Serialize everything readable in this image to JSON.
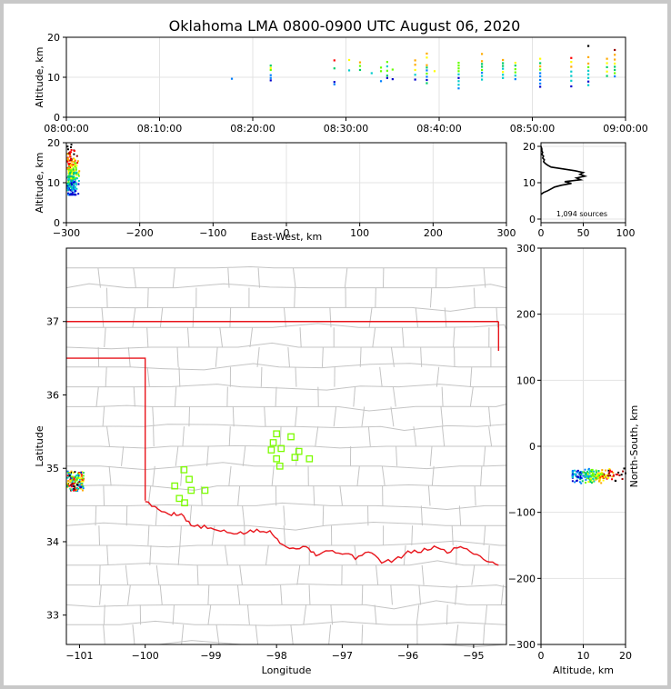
{
  "title": "Oklahoma LMA 0800-0900 UTC August 06, 2020",
  "source_count_text": "1,094 sources",
  "chart_data": [
    {
      "panel": "time-altitude",
      "type": "scatter",
      "ylabel": "Altitude, km",
      "xlim": [
        "08:00:00",
        "09:00:00"
      ],
      "ylim": [
        0,
        20
      ],
      "xticks": [
        "08:00:00",
        "08:10:00",
        "08:20:00",
        "08:30:00",
        "08:40:00",
        "08:50:00",
        "09:00:00"
      ],
      "yticks": [
        "0",
        "10",
        "20"
      ],
      "grid": true,
      "columns": [
        {
          "t": "08:17:45",
          "alts": [
            9.6
          ]
        },
        {
          "t": "08:21:55",
          "alts": [
            9.2,
            9.8,
            10.5,
            11.8,
            12.3,
            12.9
          ]
        },
        {
          "t": "08:28:45",
          "alts": [
            8.2,
            8.8,
            12.2,
            14.2
          ]
        },
        {
          "t": "08:30:20",
          "alts": [
            11.7,
            14.3
          ]
        },
        {
          "t": "08:31:30",
          "alts": [
            11.8,
            12.8,
            13.7
          ]
        },
        {
          "t": "08:32:45",
          "alts": [
            11.0
          ]
        },
        {
          "t": "08:33:45",
          "alts": [
            9.0,
            11.5,
            12.4
          ]
        },
        {
          "t": "08:34:25",
          "alts": [
            9.8,
            10.4,
            11.6,
            12.7,
            13.8
          ]
        },
        {
          "t": "08:35:00",
          "alts": [
            9.5,
            11.9
          ]
        },
        {
          "t": "08:37:25",
          "alts": [
            9.4,
            10.6,
            11.8,
            13.1,
            14.2
          ]
        },
        {
          "t": "08:38:40",
          "alts": [
            8.5,
            9.3,
            10.1,
            10.9,
            11.7,
            12.4,
            13.0,
            14.9,
            15.9
          ]
        },
        {
          "t": "08:39:30",
          "alts": [
            11.5
          ]
        },
        {
          "t": "08:42:05",
          "alts": [
            7.2,
            8.1,
            9.0,
            9.8,
            10.7,
            11.5,
            12.2,
            12.9,
            13.6
          ]
        },
        {
          "t": "08:44:35",
          "alts": [
            9.4,
            10.3,
            11.1,
            11.8,
            12.6,
            13.3,
            14.0,
            15.8
          ]
        },
        {
          "t": "08:46:50",
          "alts": [
            9.8,
            10.6,
            11.3,
            12.1,
            12.8,
            13.5,
            14.3
          ]
        },
        {
          "t": "08:48:10",
          "alts": [
            9.5,
            10.4,
            11.2,
            12.0,
            12.9,
            13.6
          ]
        },
        {
          "t": "08:50:50",
          "alts": [
            7.6,
            8.4,
            9.3,
            10.2,
            11.0,
            11.9,
            12.7,
            13.5,
            14.6
          ]
        },
        {
          "t": "08:54:10",
          "alts": [
            7.7,
            9.1,
            10.3,
            11.4,
            12.6,
            13.8,
            14.8
          ]
        },
        {
          "t": "08:56:00",
          "alts": [
            8.0,
            8.9,
            9.8,
            10.7,
            11.6,
            12.5,
            13.4,
            15.0,
            17.8
          ]
        },
        {
          "t": "08:58:00",
          "alts": [
            10.3,
            11.4,
            12.5,
            13.5,
            14.6
          ]
        },
        {
          "t": "08:58:50",
          "alts": [
            10.2,
            11.0,
            11.8,
            12.6,
            13.4,
            14.4,
            15.6,
            16.8
          ]
        }
      ]
    },
    {
      "panel": "east-west-altitude",
      "type": "scatter",
      "xlabel": "East-West, km",
      "ylabel": "Altitude, km",
      "xlim": [
        -300,
        300
      ],
      "ylim": [
        0,
        20
      ],
      "xticks": [
        "−300",
        "−200",
        "−100",
        "0",
        "100",
        "200",
        "300"
      ],
      "yticks": [
        "0",
        "10",
        "20"
      ],
      "grid": true,
      "cluster_x_range": [
        -300,
        -282
      ],
      "cluster_alt_range": [
        7,
        20
      ]
    },
    {
      "panel": "altitude-histogram",
      "type": "line",
      "xlim": [
        0,
        100
      ],
      "ylim": [
        0,
        20
      ],
      "xticks": [
        "0",
        "50",
        "100"
      ],
      "yticks": [
        "0",
        "10",
        "20"
      ],
      "grid": true,
      "alt": [
        6.8,
        7.3,
        7.8,
        8.3,
        8.8,
        9.3,
        9.8,
        10.3,
        10.8,
        11.3,
        11.8,
        12.3,
        12.8,
        13.3,
        13.8,
        14.3,
        14.8,
        15.3,
        15.8,
        16.3,
        16.8,
        17.3,
        17.8,
        18.3,
        18.8,
        19.3,
        20.0
      ],
      "count": [
        0,
        3,
        8,
        12,
        16,
        24,
        36,
        28,
        47,
        42,
        52,
        46,
        50,
        40,
        26,
        12,
        8,
        5,
        3,
        4,
        2,
        3,
        1,
        2,
        1,
        1,
        0
      ]
    },
    {
      "panel": "plan-view",
      "type": "scatter",
      "xlabel": "Longitude",
      "ylabel": "Latitude",
      "xlim": [
        -101.2,
        -94.5
      ],
      "ylim": [
        32.6,
        38.0
      ],
      "xticks": [
        "−101",
        "−100",
        "−99",
        "−98",
        "−97",
        "−96",
        "−95"
      ],
      "yticks": [
        "33",
        "34",
        "35",
        "36",
        "37"
      ],
      "stations": [
        {
          "lon": -98.0,
          "lat": 35.47
        },
        {
          "lon": -97.78,
          "lat": 35.43
        },
        {
          "lon": -98.05,
          "lat": 35.35
        },
        {
          "lon": -97.93,
          "lat": 35.27
        },
        {
          "lon": -98.08,
          "lat": 35.25
        },
        {
          "lon": -97.66,
          "lat": 35.23
        },
        {
          "lon": -98.0,
          "lat": 35.13
        },
        {
          "lon": -97.72,
          "lat": 35.15
        },
        {
          "lon": -97.5,
          "lat": 35.13
        },
        {
          "lon": -97.95,
          "lat": 35.03
        },
        {
          "lon": -99.41,
          "lat": 34.98
        },
        {
          "lon": -99.33,
          "lat": 34.85
        },
        {
          "lon": -99.55,
          "lat": 34.76
        },
        {
          "lon": -99.3,
          "lat": 34.7
        },
        {
          "lon": -99.09,
          "lat": 34.7
        },
        {
          "lon": -99.48,
          "lat": 34.59
        },
        {
          "lon": -99.4,
          "lat": 34.53
        }
      ],
      "cluster_lon_range": [
        -101.2,
        -100.95
      ],
      "cluster_lat_range": [
        34.7,
        34.97
      ]
    },
    {
      "panel": "north-south-altitude",
      "type": "scatter",
      "xlabel": "Altitude, km",
      "ylabel": "North-South, km",
      "xlim": [
        0,
        20
      ],
      "ylim": [
        -300,
        300
      ],
      "xticks": [
        "0",
        "10",
        "20"
      ],
      "yticks": [
        "−300",
        "−200",
        "−100",
        "0",
        "100",
        "200",
        "300"
      ],
      "grid": true,
      "cluster_alt_range": [
        7.5,
        20
      ],
      "cluster_ns_range": [
        -56,
        -32
      ]
    }
  ],
  "colors": {
    "border_red": "#e8141b",
    "county_line": "#c4c4c4",
    "station_green": "#7cfc00",
    "grid": "#e3e3e3",
    "source_palette": [
      "#0000cc",
      "#0080ff",
      "#00cccc",
      "#00cc66",
      "#66ff00",
      "#ffff00",
      "#ffaa00",
      "#ff0000",
      "#990000",
      "#000000"
    ]
  }
}
